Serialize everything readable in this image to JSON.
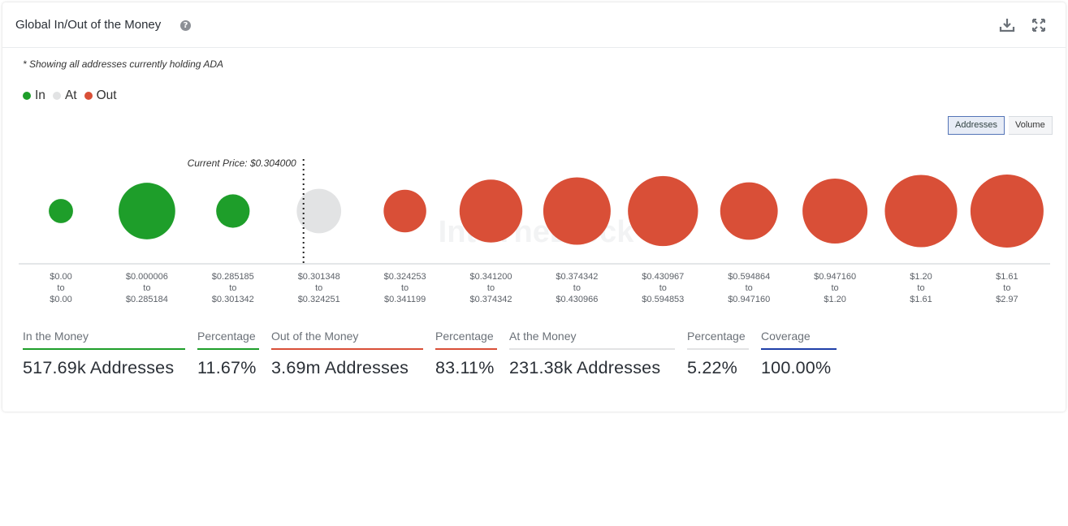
{
  "header": {
    "title": "Global In/Out of the Money",
    "help_icon": "question-circle-icon",
    "download_icon": "download-icon",
    "expand_icon": "expand-icon"
  },
  "note": "* Showing all addresses currently holding ADA",
  "legend": [
    {
      "label": "In",
      "color": "#1e9e2a"
    },
    {
      "label": "At",
      "color": "#e2e3e4"
    },
    {
      "label": "Out",
      "color": "#d94f37"
    }
  ],
  "toggles": {
    "addresses": "Addresses",
    "volume": "Volume",
    "active": "addresses"
  },
  "watermark": "IntoTheBlock",
  "chart_data": {
    "type": "bubble",
    "current_price_label": "Current Price: $0.304000",
    "current_price": 0.304,
    "metric": "Addresses",
    "bubbles": [
      {
        "from": "$0.00",
        "to_word": "to",
        "to": "$0.00",
        "status": "in",
        "relative_size": 0.11
      },
      {
        "from": "$0.000006",
        "to_word": "to",
        "to": "$0.285184",
        "status": "in",
        "relative_size": 0.6
      },
      {
        "from": "$0.285185",
        "to_word": "to",
        "to": "$0.301342",
        "status": "in",
        "relative_size": 0.21
      },
      {
        "from": "$0.301348",
        "to_word": "to",
        "to": "$0.324251",
        "status": "at",
        "relative_size": 0.37
      },
      {
        "from": "$0.324253",
        "to_word": "to",
        "to": "$0.341199",
        "status": "out",
        "relative_size": 0.34
      },
      {
        "from": "$0.341200",
        "to_word": "to",
        "to": "$0.374342",
        "status": "out",
        "relative_size": 0.74
      },
      {
        "from": "$0.374342",
        "to_word": "to",
        "to": "$0.430966",
        "status": "out",
        "relative_size": 0.85
      },
      {
        "from": "$0.430967",
        "to_word": "to",
        "to": "$0.594853",
        "status": "out",
        "relative_size": 0.92
      },
      {
        "from": "$0.594864",
        "to_word": "to",
        "to": "$0.947160",
        "status": "out",
        "relative_size": 0.62
      },
      {
        "from": "$0.947160",
        "to_word": "to",
        "to": "$1.20",
        "status": "out",
        "relative_size": 0.79
      },
      {
        "from": "$1.20",
        "to_word": "to",
        "to": "$1.61",
        "status": "out",
        "relative_size": 0.98
      },
      {
        "from": "$1.61",
        "to_word": "to",
        "to": "$2.97",
        "status": "out",
        "relative_size": 1.0
      }
    ]
  },
  "stats": [
    {
      "label": "In the Money",
      "value": "517.69k Addresses",
      "color": "#1e9e2a"
    },
    {
      "label": "Percentage",
      "value": "11.67%",
      "color": "#1e9e2a"
    },
    {
      "label": "Out of the Money",
      "value": "3.69m Addresses",
      "color": "#d94f37"
    },
    {
      "label": "Percentage",
      "value": "83.11%",
      "color": "#d94f37"
    },
    {
      "label": "At the Money",
      "value": "231.38k Addresses",
      "color": "#e2e3e4"
    },
    {
      "label": "Percentage",
      "value": "5.22%",
      "color": "#e2e3e4"
    },
    {
      "label": "Coverage",
      "value": "100.00%",
      "color": "#1f3fa8"
    }
  ]
}
